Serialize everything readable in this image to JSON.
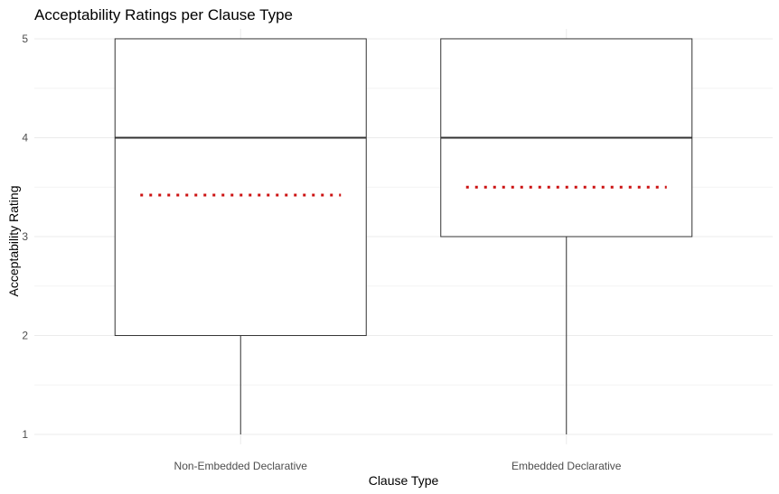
{
  "chart_data": {
    "type": "box",
    "title": "Acceptability Ratings per Clause Type",
    "xlabel": "Clause Type",
    "ylabel": "Acceptability Rating",
    "ylim": [
      0.9,
      5.1
    ],
    "yticks": [
      1,
      2,
      3,
      4,
      5
    ],
    "grid": true,
    "legend": "none",
    "categories": [
      "Non-Embedded Declarative",
      "Embedded Declarative"
    ],
    "boxes": [
      {
        "category": "Non-Embedded Declarative",
        "min": 1,
        "q1": 2,
        "median": 4,
        "q3": 5,
        "max": 5,
        "mean": 3.42
      },
      {
        "category": "Embedded Declarative",
        "min": 1,
        "q1": 3,
        "median": 4,
        "q3": 5,
        "max": 5,
        "mean": 3.5
      }
    ],
    "colors": {
      "box_outline": "#333333",
      "mean_line": "#cc1111",
      "grid": "#ebebeb"
    }
  }
}
